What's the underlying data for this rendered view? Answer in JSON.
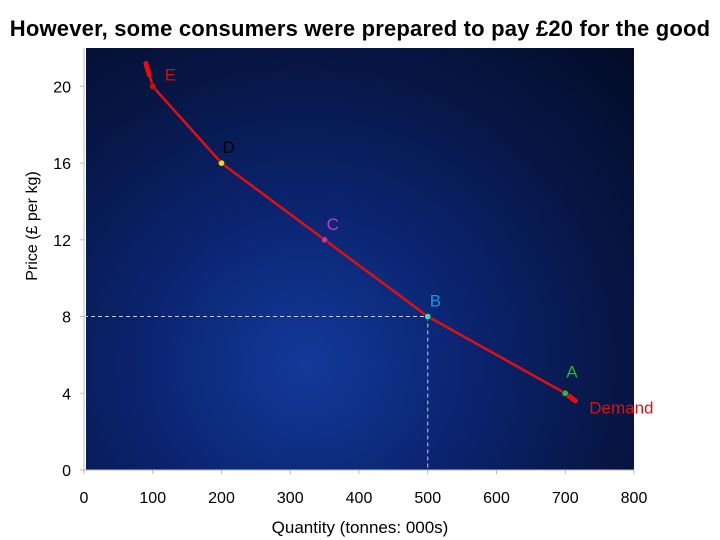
{
  "title": "However, some consumers were prepared to pay £20  for the good",
  "colors": {
    "curve": "#e01010",
    "point_E": "#cc1111",
    "point_D": "#e8d830",
    "point_C": "#cc33aa",
    "point_B": "#44d4d4",
    "point_A": "#22bb44",
    "label_E": "#cc1111",
    "label_D": "#000000",
    "label_C": "#cc33cc",
    "label_B": "#1199dd",
    "label_A": "#22bb22",
    "demand_label": "#e01010",
    "guide": "#c8c8e8"
  },
  "chart_data": {
    "type": "line",
    "title": "However, some consumers were prepared to pay £20  for the good",
    "xlabel": "Quantity (tonnes: 000s)",
    "ylabel": "Price (£ per kg)",
    "xlim": [
      0,
      800
    ],
    "ylim": [
      0,
      22
    ],
    "x_ticks": [
      0,
      100,
      200,
      300,
      400,
      500,
      600,
      700,
      800
    ],
    "y_ticks": [
      0,
      4,
      8,
      12,
      16,
      20
    ],
    "grid": false,
    "series": [
      {
        "name": "Demand",
        "points": [
          {
            "x": 90,
            "y": 21.2
          },
          {
            "x": 100,
            "y": 20
          },
          {
            "x": 200,
            "y": 16
          },
          {
            "x": 350,
            "y": 12
          },
          {
            "x": 500,
            "y": 8
          },
          {
            "x": 700,
            "y": 4
          },
          {
            "x": 715,
            "y": 3.6
          }
        ]
      }
    ],
    "labeled_points": [
      {
        "label": "E",
        "x": 100,
        "y": 20
      },
      {
        "label": "D",
        "x": 200,
        "y": 16
      },
      {
        "label": "C",
        "x": 350,
        "y": 12
      },
      {
        "label": "B",
        "x": 500,
        "y": 8
      },
      {
        "label": "A",
        "x": 700,
        "y": 4
      }
    ],
    "guide_lines": [
      {
        "x": 500,
        "y": 8
      }
    ],
    "annotation": "Demand"
  }
}
